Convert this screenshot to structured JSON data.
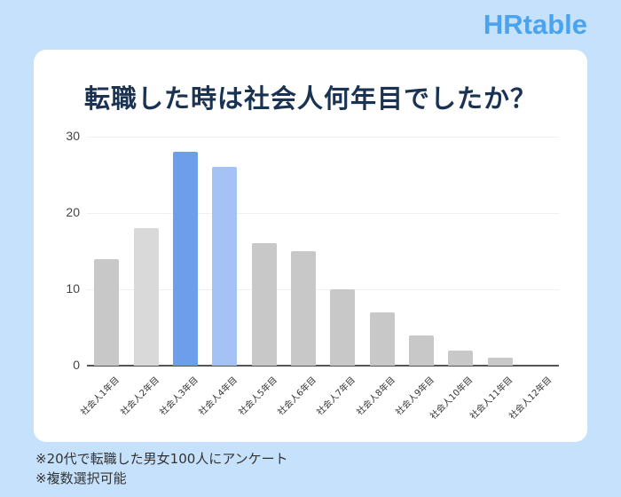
{
  "brand": {
    "logo_text": "HRtable",
    "color": "#4aa3ee"
  },
  "card": {
    "title": "転職した時は社会人何年目でしたか？"
  },
  "notes": [
    "※20代で転職した男女100人にアンケート",
    "※複数選択可能"
  ],
  "chart_data": {
    "type": "bar",
    "title": "転職した時は社会人何年目でしたか？",
    "xlabel": "",
    "ylabel": "",
    "ylim": [
      0,
      30
    ],
    "yticks": [
      0,
      10,
      20,
      30
    ],
    "grid": true,
    "legend": "none",
    "categories": [
      "社会人1年目",
      "社会人2年目",
      "社会人3年目",
      "社会人4年目",
      "社会人5年目",
      "社会人6年目",
      "社会人7年目",
      "社会人8年目",
      "社会人9年目",
      "社会人10年目",
      "社会人11年目",
      "社会人12年目"
    ],
    "values": [
      14,
      18,
      28,
      26,
      16,
      15,
      10,
      7,
      4,
      2,
      1,
      0
    ],
    "colors": [
      "#c8c8c8",
      "#d9d9d9",
      "#6d9eeb",
      "#a4c2f4",
      "#c8c8c8",
      "#c8c8c8",
      "#c8c8c8",
      "#c8c8c8",
      "#c8c8c8",
      "#c8c8c8",
      "#c8c8c8",
      "#c8c8c8"
    ]
  }
}
